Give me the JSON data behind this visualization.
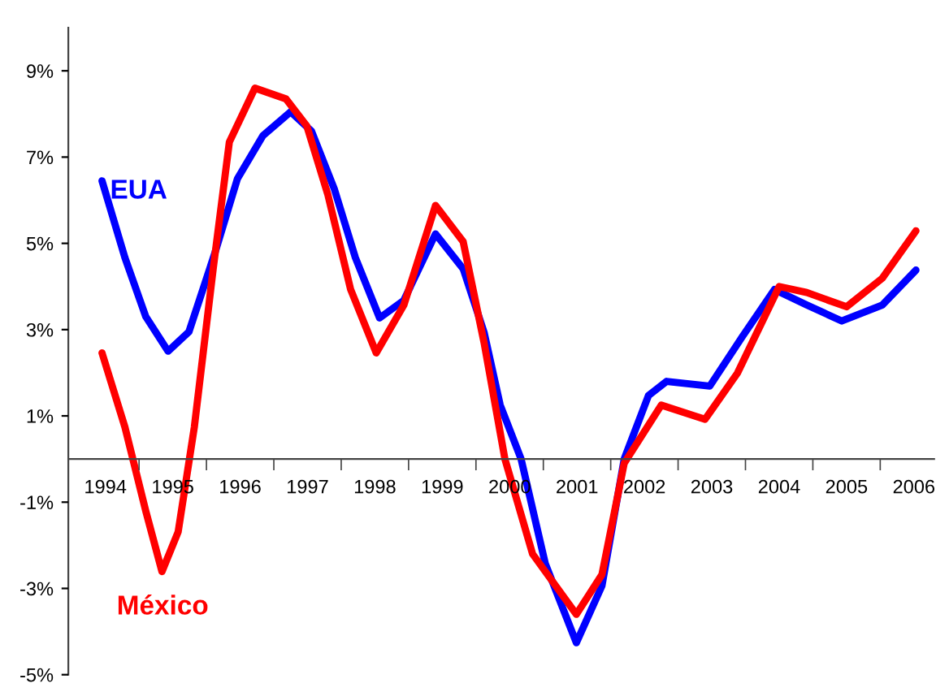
{
  "chart_data": {
    "type": "line",
    "xlim": [
      1993.45,
      2006.3
    ],
    "xticks": [
      {
        "value": 1994,
        "label": "1994"
      },
      {
        "value": 1995,
        "label": "1995"
      },
      {
        "value": 1996,
        "label": "1996"
      },
      {
        "value": 1997,
        "label": "1997"
      },
      {
        "value": 1998,
        "label": "1998"
      },
      {
        "value": 1999,
        "label": "1999"
      },
      {
        "value": 2000,
        "label": "2000"
      },
      {
        "value": 2001,
        "label": "2001"
      },
      {
        "value": 2002,
        "label": "2002"
      },
      {
        "value": 2003,
        "label": "2003"
      },
      {
        "value": 2004,
        "label": "2004"
      },
      {
        "value": 2005,
        "label": "2005"
      },
      {
        "value": 2006,
        "label": "2006"
      },
      {
        "value": 1994.5,
        "label": null
      },
      {
        "value": 1995.5,
        "label": null
      },
      {
        "value": 1996.5,
        "label": null
      },
      {
        "value": 1997.5,
        "label": null
      },
      {
        "value": 1998.5,
        "label": null
      },
      {
        "value": 1999.5,
        "label": null
      },
      {
        "value": 2000.5,
        "label": null
      },
      {
        "value": 2001.5,
        "label": null
      },
      {
        "value": 2002.5,
        "label": null
      },
      {
        "value": 2003.5,
        "label": null
      },
      {
        "value": 2004.5,
        "label": null
      },
      {
        "value": 2005.5,
        "label": null
      }
    ],
    "ylim": [
      -5,
      10
    ],
    "yticks": [
      {
        "value": -5,
        "label": "-5%"
      },
      {
        "value": -3,
        "label": "-3%"
      },
      {
        "value": -1,
        "label": "-1%"
      },
      {
        "value": 1,
        "label": "1%"
      },
      {
        "value": 3,
        "label": "3%"
      },
      {
        "value": 5,
        "label": "5%"
      },
      {
        "value": 7,
        "label": "7%"
      },
      {
        "value": 9,
        "label": "9%"
      }
    ],
    "grid": false,
    "legend": false,
    "marker": "none",
    "line_style": "solid",
    "series": [
      {
        "name": "EUA",
        "color": "#0000ff",
        "x": [
          1993.95,
          1994.29,
          1994.6,
          1994.93,
          1995.24,
          1995.63,
          1995.96,
          1996.34,
          1996.75,
          1997.06,
          1997.4,
          1997.71,
          1998.07,
          1998.43,
          1998.9,
          1999.31,
          1999.62,
          1999.86,
          2000.17,
          2000.53,
          2000.99,
          2001.37,
          2001.7,
          2002.06,
          2002.33,
          2002.97,
          2003.45,
          2003.93,
          2004.41,
          2004.93,
          2005.53,
          2006.03
        ],
        "values": [
          6.45,
          4.67,
          3.3,
          2.5,
          2.95,
          4.8,
          6.5,
          7.5,
          8.05,
          7.6,
          6.25,
          4.67,
          3.27,
          3.68,
          5.22,
          4.41,
          2.94,
          1.25,
          0,
          -2.43,
          -4.26,
          -2.94,
          0,
          1.47,
          1.8,
          1.69,
          2.83,
          3.93,
          3.57,
          3.2,
          3.57,
          4.38
        ]
      },
      {
        "name": "México",
        "color": "#ff0000",
        "x": [
          1993.95,
          1994.29,
          1994.6,
          1994.84,
          1995.08,
          1995.32,
          1995.6,
          1995.84,
          1996.22,
          1996.68,
          1996.99,
          1997.3,
          1997.64,
          1998.02,
          1998.43,
          1998.9,
          1999.31,
          1999.62,
          1999.93,
          2000.34,
          2000.99,
          2001.37,
          2001.7,
          2002.25,
          2002.9,
          2003.38,
          2004.0,
          2004.41,
          2005.0,
          2005.53,
          2006.03
        ],
        "values": [
          2.46,
          0.74,
          -1.21,
          -2.61,
          -1.69,
          0.74,
          4.41,
          7.35,
          8.6,
          8.35,
          7.72,
          6.14,
          3.93,
          2.46,
          3.57,
          5.88,
          5.04,
          2.7,
          0,
          -2.2,
          -3.6,
          -2.68,
          -0.1,
          1.25,
          0.92,
          1.99,
          4.0,
          3.86,
          3.53,
          4.19,
          5.29
        ]
      }
    ]
  }
}
